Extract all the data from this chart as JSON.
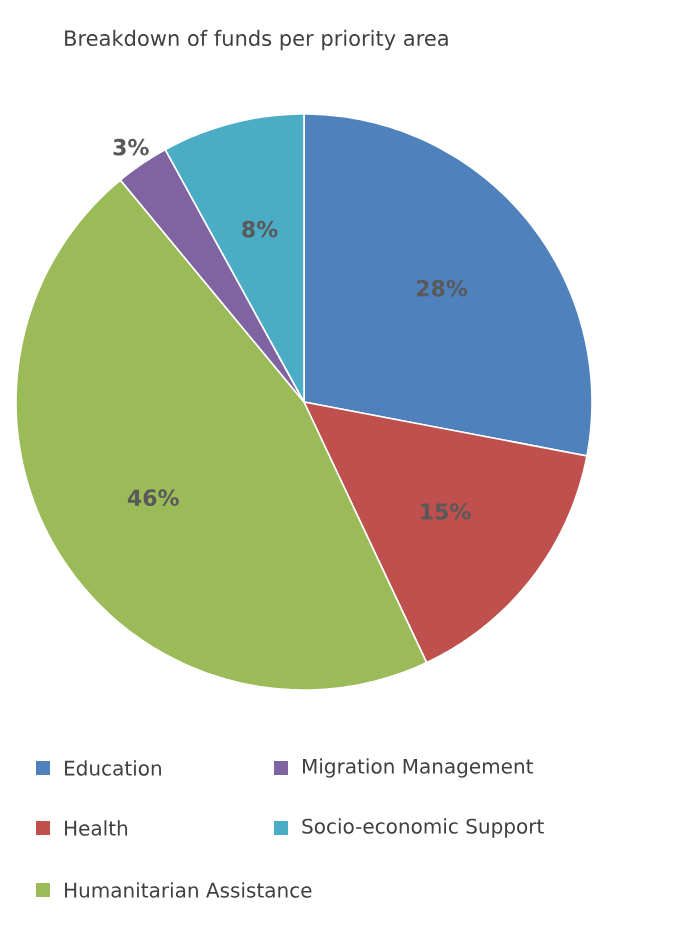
{
  "chart_data": {
    "type": "pie",
    "title": "Breakdown of funds per priority area",
    "categories": [
      "Education",
      "Health",
      "Humanitarian Assistance",
      "Migration Management",
      "Socio-economic Support"
    ],
    "values": [
      28,
      15,
      46,
      3,
      8
    ],
    "value_labels": [
      "28%",
      "15%",
      "46%",
      "3%",
      "8%"
    ],
    "colors": [
      "#4f81bd",
      "#c0504d",
      "#9bbb59",
      "#8064a2",
      "#4bacc6"
    ],
    "legend": "bottom"
  }
}
